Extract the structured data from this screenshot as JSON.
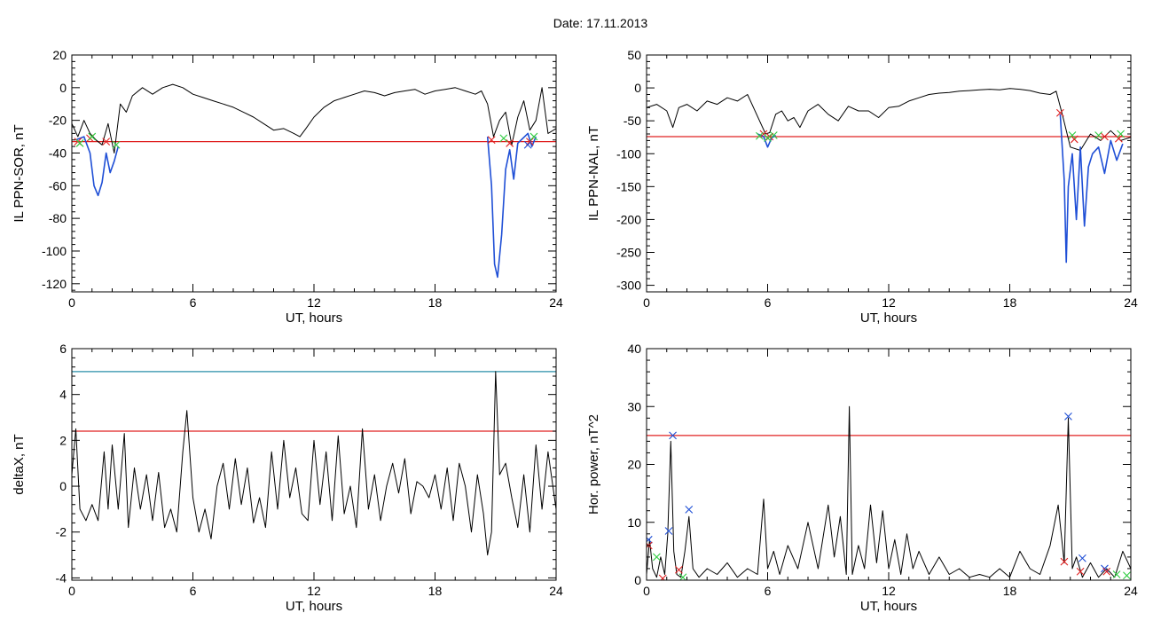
{
  "figure": {
    "title": "Date:  17.11.2013"
  },
  "chart_data": [
    {
      "type": "line",
      "ylabel": "IL PPN-SOR, nT",
      "xlabel": "UT, hours",
      "xlim": [
        0,
        24
      ],
      "ylim": [
        -125,
        20
      ],
      "xticks": [
        0,
        6,
        12,
        18,
        24
      ],
      "yticks": [
        20,
        0,
        -20,
        -40,
        -60,
        -80,
        -100,
        -120
      ],
      "series": [
        {
          "color": "#000000",
          "x": [
            0,
            0.3,
            0.6,
            0.9,
            1.2,
            1.5,
            1.8,
            2.1,
            2.4,
            2.7,
            3,
            3.5,
            4,
            4.5,
            5,
            5.5,
            6,
            6.5,
            7,
            7.5,
            8,
            8.5,
            9,
            9.5,
            10,
            10.5,
            11,
            11.3,
            11.6,
            12,
            12.5,
            13,
            13.5,
            14,
            14.5,
            15,
            15.5,
            16,
            16.5,
            17,
            17.5,
            18,
            18.5,
            19,
            19.5,
            20,
            20.3,
            20.6,
            20.9,
            21.2,
            21.5,
            21.8,
            22.1,
            22.4,
            22.7,
            23,
            23.3,
            23.6,
            24
          ],
          "y": [
            -22,
            -30,
            -20,
            -28,
            -32,
            -35,
            -22,
            -40,
            -10,
            -15,
            -5,
            0,
            -4,
            0,
            2,
            0,
            -4,
            -6,
            -8,
            -10,
            -12,
            -15,
            -18,
            -22,
            -26,
            -25,
            -28,
            -30,
            -25,
            -18,
            -12,
            -8,
            -6,
            -4,
            -2,
            -3,
            -5,
            -3,
            -2,
            -1,
            -4,
            -2,
            -1,
            0,
            -2,
            -4,
            -2,
            -10,
            -30,
            -20,
            -15,
            -35,
            -18,
            -8,
            -26,
            -20,
            0,
            -28,
            -25
          ]
        },
        {
          "color": "#1f4fd6",
          "x": [
            0.2,
            0.6,
            0.9,
            1.1,
            1.3,
            1.5,
            1.7,
            1.9,
            2.1,
            2.3
          ],
          "y": [
            -32,
            -30,
            -40,
            -60,
            -66,
            -58,
            -40,
            -52,
            -45,
            -36
          ]
        },
        {
          "color": "#1f4fd6",
          "x": [
            20.6,
            20.8,
            20.95,
            21.1,
            21.3,
            21.5,
            21.7,
            21.9,
            22.1,
            22.6,
            22.8,
            23
          ],
          "y": [
            -30,
            -60,
            -108,
            -116,
            -90,
            -50,
            -38,
            -56,
            -34,
            -28,
            -36,
            -30
          ]
        }
      ],
      "hlines": [
        {
          "y": -33,
          "color": "#e02020"
        }
      ],
      "markers": [
        {
          "x": 0.3,
          "y": -33,
          "color": "#e02020"
        },
        {
          "x": 0.9,
          "y": -31,
          "color": "#e02020"
        },
        {
          "x": 1.7,
          "y": -33,
          "color": "#e02020"
        },
        {
          "x": 20.8,
          "y": -32,
          "color": "#e02020"
        },
        {
          "x": 21.7,
          "y": -34,
          "color": "#e02020"
        },
        {
          "x": 22.7,
          "y": -33,
          "color": "#e02020"
        },
        {
          "x": 0.4,
          "y": -34,
          "color": "#2ecc40"
        },
        {
          "x": 1.0,
          "y": -30,
          "color": "#2ecc40"
        },
        {
          "x": 2.2,
          "y": -35,
          "color": "#2ecc40"
        },
        {
          "x": 21.4,
          "y": -31,
          "color": "#2ecc40"
        },
        {
          "x": 22.9,
          "y": -30,
          "color": "#2ecc40"
        },
        {
          "x": 22.6,
          "y": -35,
          "color": "#1f4fd6"
        }
      ]
    },
    {
      "type": "line",
      "ylabel": "IL PPN-NAL, nT",
      "xlabel": "UT, hours",
      "xlim": [
        0,
        24
      ],
      "ylim": [
        -310,
        50
      ],
      "xticks": [
        0,
        6,
        12,
        18,
        24
      ],
      "yticks": [
        50,
        0,
        -50,
        -100,
        -150,
        -200,
        -250,
        -300
      ],
      "series": [
        {
          "color": "#000000",
          "x": [
            0,
            0.5,
            1,
            1.3,
            1.6,
            2,
            2.5,
            3,
            3.5,
            4,
            4.5,
            5,
            5.3,
            5.6,
            5.9,
            6.1,
            6.4,
            6.7,
            7,
            7.3,
            7.6,
            8,
            8.5,
            9,
            9.5,
            10,
            10.5,
            11,
            11.5,
            12,
            12.5,
            13,
            13.5,
            14,
            14.5,
            15,
            15.5,
            16,
            16.5,
            17,
            17.5,
            18,
            18.5,
            19,
            19.5,
            20,
            20.3,
            20.6,
            21,
            21.5,
            22,
            22.5,
            23,
            23.5,
            24
          ],
          "y": [
            -30,
            -25,
            -35,
            -60,
            -30,
            -25,
            -35,
            -20,
            -25,
            -15,
            -20,
            -10,
            -30,
            -50,
            -70,
            -68,
            -40,
            -35,
            -50,
            -45,
            -60,
            -35,
            -25,
            -40,
            -50,
            -28,
            -35,
            -35,
            -45,
            -30,
            -28,
            -20,
            -15,
            -10,
            -8,
            -7,
            -5,
            -4,
            -3,
            -2,
            -3,
            -1,
            -2,
            -4,
            -8,
            -10,
            -5,
            -40,
            -90,
            -95,
            -70,
            -80,
            -65,
            -80,
            -75
          ]
        },
        {
          "color": "#1f4fd6",
          "x": [
            5.5,
            5.8,
            6.0,
            6.2,
            6.4
          ],
          "y": [
            -70,
            -74,
            -90,
            -76,
            -72
          ]
        },
        {
          "color": "#1f4fd6",
          "x": [
            20.5,
            20.7,
            20.8,
            20.9,
            21.1,
            21.3,
            21.5,
            21.7,
            21.9,
            22.1,
            22.4,
            22.7,
            23,
            23.3,
            23.6
          ],
          "y": [
            -40,
            -140,
            -265,
            -150,
            -100,
            -200,
            -90,
            -210,
            -120,
            -100,
            -90,
            -130,
            -80,
            -110,
            -85
          ]
        }
      ],
      "hlines": [
        {
          "y": -74,
          "color": "#e02020"
        }
      ],
      "markers": [
        {
          "x": 5.8,
          "y": -70,
          "color": "#e02020"
        },
        {
          "x": 6.1,
          "y": -74,
          "color": "#e02020"
        },
        {
          "x": 20.5,
          "y": -38,
          "color": "#e02020"
        },
        {
          "x": 21.2,
          "y": -78,
          "color": "#e02020"
        },
        {
          "x": 22.7,
          "y": -74,
          "color": "#e02020"
        },
        {
          "x": 23.4,
          "y": -77,
          "color": "#e02020"
        },
        {
          "x": 5.6,
          "y": -73,
          "color": "#2ecc40"
        },
        {
          "x": 6.0,
          "y": -76,
          "color": "#2ecc40"
        },
        {
          "x": 6.3,
          "y": -72,
          "color": "#2ecc40"
        },
        {
          "x": 21.1,
          "y": -72,
          "color": "#2ecc40"
        },
        {
          "x": 22.4,
          "y": -72,
          "color": "#2ecc40"
        },
        {
          "x": 23.5,
          "y": -70,
          "color": "#2ecc40"
        }
      ]
    },
    {
      "type": "line",
      "ylabel": "deltaX, nT",
      "xlabel": "UT, hours",
      "xlim": [
        0,
        24
      ],
      "ylim": [
        -4.1,
        6
      ],
      "xticks": [
        0,
        6,
        12,
        18,
        24
      ],
      "yticks": [
        6,
        4,
        2,
        0,
        -2,
        -4
      ],
      "series": [
        {
          "color": "#000000",
          "x": [
            0,
            0.2,
            0.4,
            0.7,
            1.0,
            1.3,
            1.6,
            1.8,
            2.0,
            2.3,
            2.6,
            2.8,
            3.1,
            3.4,
            3.7,
            4.0,
            4.3,
            4.6,
            4.9,
            5.2,
            5.5,
            5.7,
            6.0,
            6.3,
            6.6,
            6.9,
            7.2,
            7.5,
            7.8,
            8.1,
            8.4,
            8.7,
            9.0,
            9.3,
            9.6,
            9.9,
            10.2,
            10.5,
            10.8,
            11.1,
            11.4,
            11.7,
            12.0,
            12.3,
            12.6,
            12.9,
            13.2,
            13.5,
            13.8,
            14.1,
            14.4,
            14.7,
            15.0,
            15.3,
            15.6,
            15.9,
            16.2,
            16.5,
            16.8,
            17.1,
            17.4,
            17.7,
            18.0,
            18.3,
            18.6,
            18.9,
            19.2,
            19.5,
            19.8,
            20.1,
            20.4,
            20.6,
            20.8,
            21.0,
            21.2,
            21.5,
            21.8,
            22.1,
            22.4,
            22.7,
            23.0,
            23.3,
            23.6,
            24
          ],
          "y": [
            0.5,
            2.5,
            -1.0,
            -1.5,
            -0.8,
            -1.5,
            1.5,
            -1.0,
            1.8,
            -1.0,
            2.3,
            -1.8,
            0.8,
            -1.0,
            0.5,
            -1.5,
            0.6,
            -1.8,
            -1.0,
            -2.0,
            1.5,
            3.3,
            -0.5,
            -2.0,
            -1.0,
            -2.3,
            0.0,
            1.0,
            -1.0,
            1.2,
            -0.8,
            0.8,
            -1.6,
            -0.5,
            -1.8,
            1.5,
            -1.0,
            2.0,
            -0.5,
            0.8,
            -1.2,
            -1.5,
            2.0,
            -0.8,
            1.5,
            -1.5,
            2.2,
            -1.2,
            0.0,
            -1.8,
            2.5,
            -1.0,
            0.5,
            -1.5,
            0.0,
            1.0,
            -0.3,
            1.2,
            -1.2,
            0.2,
            0.0,
            -0.5,
            0.5,
            -1.0,
            0.8,
            -1.5,
            1.0,
            0.0,
            -2.0,
            0.5,
            -1.2,
            -3.0,
            -2.0,
            5.0,
            0.5,
            1.0,
            -0.5,
            -1.8,
            0.5,
            -2.0,
            1.8,
            -1.0,
            1.5,
            -1.0
          ]
        }
      ],
      "hlines": [
        {
          "y": 5.0,
          "color": "#2a8fa8"
        },
        {
          "y": 2.4,
          "color": "#e02020"
        }
      ],
      "markers": []
    },
    {
      "type": "line",
      "ylabel": "Hor. power, nT^2",
      "xlabel": "UT, hours",
      "xlim": [
        0,
        24
      ],
      "ylim": [
        0,
        40
      ],
      "xticks": [
        0,
        6,
        12,
        18,
        24
      ],
      "yticks": [
        40,
        30,
        20,
        10,
        0
      ],
      "series": [
        {
          "color": "#000000",
          "x": [
            0,
            0.15,
            0.3,
            0.5,
            0.7,
            0.9,
            1.05,
            1.2,
            1.35,
            1.5,
            1.7,
            1.9,
            2.1,
            2.3,
            2.6,
            3.0,
            3.5,
            4.0,
            4.5,
            5.0,
            5.5,
            5.8,
            6.0,
            6.3,
            6.6,
            7.0,
            7.5,
            8.0,
            8.5,
            9.0,
            9.3,
            9.6,
            9.9,
            10.05,
            10.2,
            10.5,
            10.8,
            11.1,
            11.4,
            11.7,
            12.0,
            12.3,
            12.6,
            12.9,
            13.2,
            13.5,
            14.0,
            14.5,
            15.0,
            15.5,
            16.0,
            16.5,
            17.0,
            17.5,
            18.0,
            18.5,
            19.0,
            19.5,
            20.0,
            20.4,
            20.7,
            20.9,
            21.1,
            21.3,
            21.6,
            22.0,
            22.4,
            22.8,
            23.2,
            23.6,
            24
          ],
          "y": [
            1.0,
            7.0,
            2.0,
            0.5,
            4.0,
            1.0,
            8.0,
            24.0,
            5.0,
            1.0,
            0.5,
            5.0,
            11.0,
            2.0,
            0.5,
            2.0,
            1.0,
            3.0,
            0.5,
            2.0,
            1.0,
            14.0,
            2.0,
            5.0,
            1.0,
            6.0,
            2.0,
            10.0,
            2.0,
            13.0,
            4.0,
            11.0,
            1.0,
            30.0,
            1.0,
            6.0,
            2.0,
            13.0,
            3.0,
            12.0,
            2.0,
            7.0,
            1.0,
            8.0,
            2.0,
            5.0,
            1.0,
            4.0,
            1.0,
            2.0,
            0.5,
            1.0,
            0.5,
            2.0,
            0.5,
            5.0,
            2.0,
            1.0,
            6.0,
            13.0,
            3.0,
            28.0,
            2.0,
            4.0,
            0.5,
            3.0,
            0.5,
            2.0,
            0.5,
            5.0,
            2.0
          ]
        }
      ],
      "hlines": [
        {
          "y": 25.0,
          "color": "#e02020"
        }
      ],
      "markers": [
        {
          "x": 0.1,
          "y": 7.0,
          "color": "#1f4fd6"
        },
        {
          "x": 1.1,
          "y": 8.5,
          "color": "#1f4fd6"
        },
        {
          "x": 1.3,
          "y": 25.0,
          "color": "#1f4fd6"
        },
        {
          "x": 2.1,
          "y": 12.2,
          "color": "#1f4fd6"
        },
        {
          "x": 20.9,
          "y": 28.3,
          "color": "#1f4fd6"
        },
        {
          "x": 21.6,
          "y": 3.8,
          "color": "#1f4fd6"
        },
        {
          "x": 22.7,
          "y": 2.0,
          "color": "#1f4fd6"
        },
        {
          "x": 0.1,
          "y": 6.0,
          "color": "#e02020"
        },
        {
          "x": 0.8,
          "y": 0.3,
          "color": "#e02020"
        },
        {
          "x": 1.6,
          "y": 1.8,
          "color": "#e02020"
        },
        {
          "x": 20.7,
          "y": 3.2,
          "color": "#e02020"
        },
        {
          "x": 21.5,
          "y": 1.5,
          "color": "#e02020"
        },
        {
          "x": 22.8,
          "y": 1.5,
          "color": "#e02020"
        },
        {
          "x": 0.5,
          "y": 4.0,
          "color": "#2ecc40"
        },
        {
          "x": 1.8,
          "y": 0.5,
          "color": "#2ecc40"
        },
        {
          "x": 23.3,
          "y": 1.0,
          "color": "#2ecc40"
        },
        {
          "x": 23.8,
          "y": 0.8,
          "color": "#2ecc40"
        }
      ]
    }
  ]
}
